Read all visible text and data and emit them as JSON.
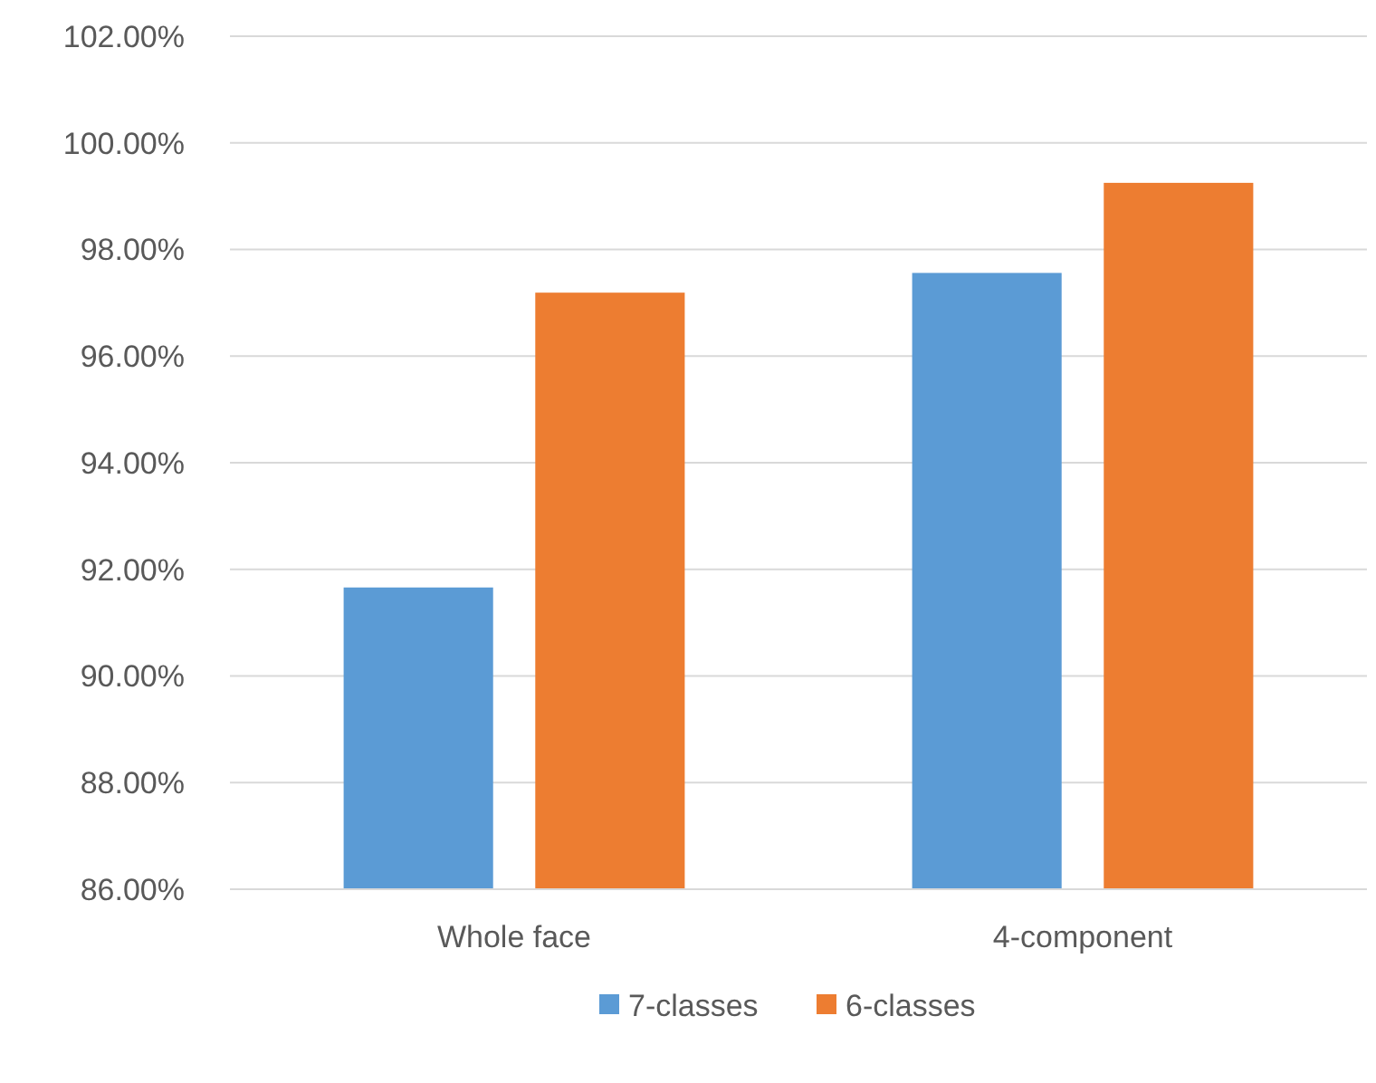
{
  "chart_data": {
    "type": "bar",
    "categories": [
      "Whole face",
      "4-component"
    ],
    "series": [
      {
        "name": "7-classes",
        "color": "#5b9bd5",
        "values": [
          91.66,
          97.56
        ]
      },
      {
        "name": "6-classes",
        "color": "#ed7d31",
        "values": [
          97.19,
          99.25
        ]
      }
    ],
    "ylim": [
      86,
      102
    ],
    "yticks": [
      {
        "value": 86,
        "label": "86.00%"
      },
      {
        "value": 88,
        "label": "88.00%"
      },
      {
        "value": 90,
        "label": "90.00%"
      },
      {
        "value": 92,
        "label": "92.00%"
      },
      {
        "value": 94,
        "label": "94.00%"
      },
      {
        "value": 96,
        "label": "96.00%"
      },
      {
        "value": 98,
        "label": "98.00%"
      },
      {
        "value": 100,
        "label": "100.00%"
      },
      {
        "value": 102,
        "label": "102.00%"
      }
    ],
    "grid": "y",
    "legend": "bottom"
  }
}
